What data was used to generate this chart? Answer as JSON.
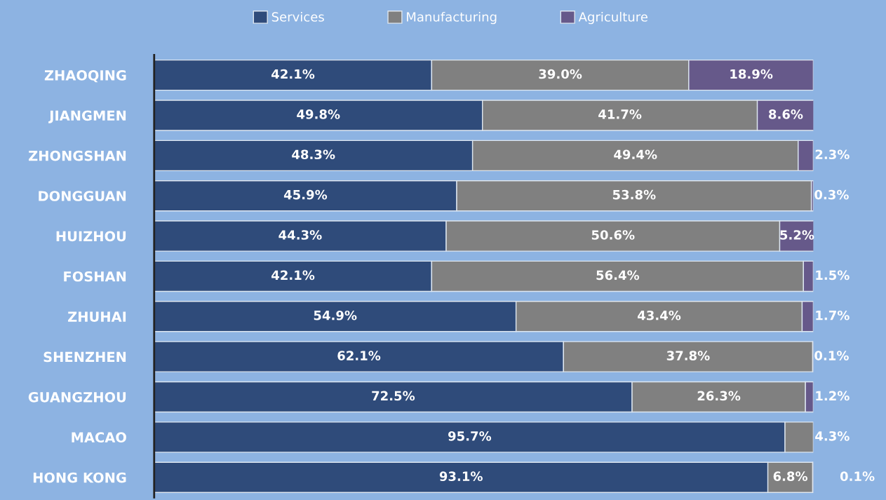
{
  "chart_data": {
    "type": "bar",
    "orientation": "horizontal",
    "stacked": true,
    "categories": [
      "ZHAOQING",
      "JIANGMEN",
      "ZHONGSHAN",
      "DONGGUAN",
      "HUIZHOU",
      "FOSHAN",
      "ZHUHAI",
      "SHENZHEN",
      "GUANGZHOU",
      "MACAO",
      "HONG KONG"
    ],
    "series": [
      {
        "name": "Services",
        "color": "#2f4b7a",
        "values": [
          42.1,
          49.8,
          48.3,
          45.9,
          44.3,
          42.1,
          54.9,
          62.1,
          72.5,
          95.7,
          93.1
        ],
        "value_labels": [
          "42.1%",
          "49.8%",
          "48.3%",
          "45.9%",
          "44.3%",
          "42.1%",
          "54.9%",
          "62.1%",
          "72.5%",
          "95.7%",
          "93.1%"
        ]
      },
      {
        "name": "Manufacturing",
        "color": "#808080",
        "values": [
          39.0,
          41.7,
          49.4,
          53.8,
          50.6,
          56.4,
          43.4,
          37.8,
          26.3,
          4.3,
          6.8
        ],
        "value_labels": [
          "39.0%",
          "41.7%",
          "49.4%",
          "53.8%",
          "50.6%",
          "56.4%",
          "43.4%",
          "37.8%",
          "26.3%",
          "4.3%",
          "6.8%"
        ]
      },
      {
        "name": "Agriculture",
        "color": "#66598a",
        "values": [
          18.9,
          8.6,
          2.3,
          0.3,
          5.2,
          1.5,
          1.7,
          0.1,
          1.2,
          null,
          0.1
        ],
        "value_labels": [
          "18.9%",
          "8.6%",
          "2.3%",
          "0.3%",
          "5.2%",
          "1.5%",
          "1.7%",
          "0.1%",
          "1.2%",
          null,
          "0.1%"
        ]
      }
    ],
    "xlim": [
      0,
      100
    ],
    "tick_labels": "y",
    "legend": "top",
    "grid": false
  }
}
